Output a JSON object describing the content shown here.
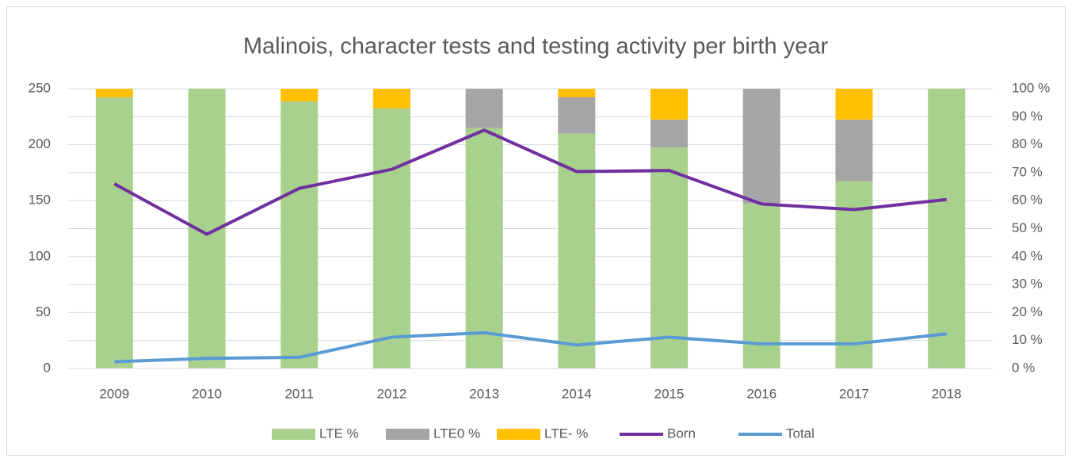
{
  "chart_data": {
    "type": "bar",
    "title": "Malinois, character tests and testing activity per birth year",
    "categories": [
      "2009",
      "2010",
      "2011",
      "2012",
      "2013",
      "2014",
      "2015",
      "2016",
      "2017",
      "2018"
    ],
    "series": [
      {
        "name": "LTE %",
        "type": "bar",
        "axis": "y2",
        "color": "#a9d18e",
        "values": [
          97,
          100,
          95.5,
          93,
          86,
          84,
          79,
          59,
          67,
          100
        ]
      },
      {
        "name": "LTE0 %",
        "type": "bar",
        "axis": "y2",
        "color": "#a5a5a5",
        "values": [
          0,
          0,
          0,
          0,
          14,
          13,
          10,
          41,
          22,
          0
        ]
      },
      {
        "name": "LTE- %",
        "type": "bar",
        "axis": "y2",
        "color": "#ffc000",
        "values": [
          3,
          0,
          4.5,
          7,
          0,
          3,
          11,
          0,
          11,
          0
        ]
      },
      {
        "name": "Born",
        "type": "line",
        "axis": "y",
        "color": "#7030a0",
        "values": [
          165,
          120,
          161,
          178,
          213,
          176,
          177,
          147,
          142,
          151
        ]
      },
      {
        "name": "Total",
        "type": "line",
        "axis": "y",
        "color": "#5b9bd5",
        "values": [
          6,
          9,
          10,
          28,
          32,
          21,
          28,
          22,
          22,
          31
        ]
      }
    ],
    "ylim": [
      0,
      250
    ],
    "yticks": [
      0,
      50,
      100,
      150,
      200,
      250
    ],
    "y2lim": [
      0,
      100
    ],
    "y2ticks": [
      {
        "value": 0,
        "label": "0 %"
      },
      {
        "value": 10,
        "label": "10 %"
      },
      {
        "value": 20,
        "label": "20 %"
      },
      {
        "value": 30,
        "label": "30 %"
      },
      {
        "value": 40,
        "label": "40 %"
      },
      {
        "value": 50,
        "label": "50 %"
      },
      {
        "value": 60,
        "label": "60 %"
      },
      {
        "value": 70,
        "label": "70 %"
      },
      {
        "value": 80,
        "label": "80 %"
      },
      {
        "value": 90,
        "label": "90 %"
      },
      {
        "value": 100,
        "label": "100 %"
      }
    ],
    "grid": true,
    "legend": "bottom"
  }
}
